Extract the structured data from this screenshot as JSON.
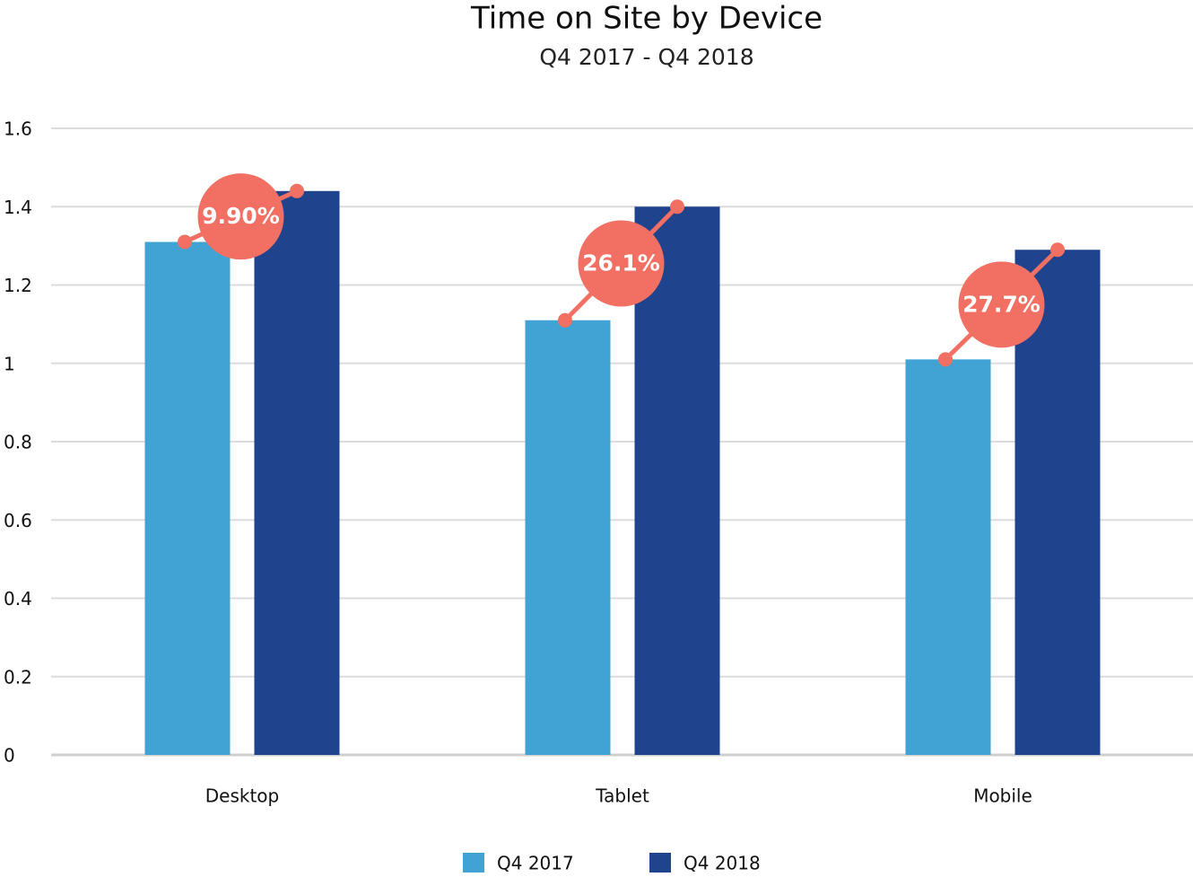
{
  "chart_data": {
    "type": "bar",
    "title": "Time on Site by Device",
    "subtitle": "Q4 2017 - Q4 2018",
    "categories": [
      "Desktop",
      "Tablet",
      "Mobile"
    ],
    "series": [
      {
        "name": "Q4 2017",
        "color": "#41a3d4",
        "values": [
          1.31,
          1.11,
          1.01
        ]
      },
      {
        "name": "Q4 2018",
        "color": "#1f438c",
        "values": [
          1.44,
          1.4,
          1.29
        ]
      }
    ],
    "change": {
      "color": "#f26f63",
      "values": [
        9.9,
        26.1,
        27.7
      ],
      "value_labels": [
        "9.90%",
        "26.1%",
        "27.7%"
      ]
    },
    "ylim": [
      0,
      1.6
    ],
    "yticks": [
      0,
      0.2,
      0.4,
      0.6,
      0.8,
      1,
      1.2,
      1.4,
      1.6
    ],
    "grid": true,
    "legend": "bottom"
  }
}
